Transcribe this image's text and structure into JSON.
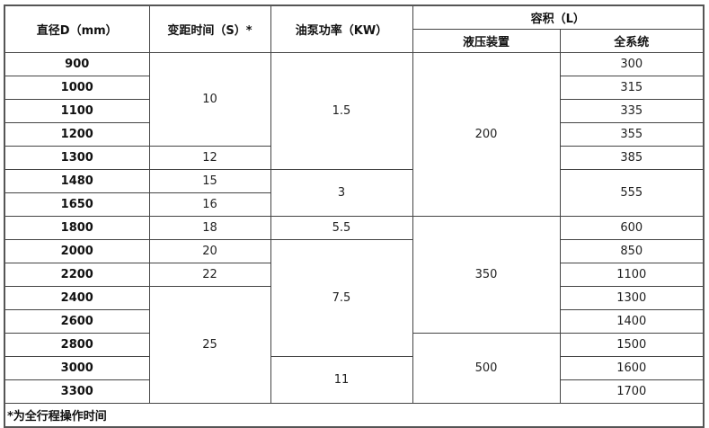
{
  "headers": {
    "diameter": "直径D（mm）",
    "pitch_time": "变距时间（S）*",
    "pump_power": "油泵功率（KW）",
    "volume": "容积（L）",
    "hydraulic": "液压装置",
    "system": "全系统"
  },
  "diameters": [
    "900",
    "1000",
    "1100",
    "1200",
    "1300",
    "1480",
    "1650",
    "1800",
    "2000",
    "2200",
    "2400",
    "2600",
    "2800",
    "3000",
    "3300"
  ],
  "pitch_time": [
    {
      "value": "10",
      "rows": 4
    },
    {
      "value": "12",
      "rows": 1
    },
    {
      "value": "15",
      "rows": 1
    },
    {
      "value": "16",
      "rows": 1
    },
    {
      "value": "18",
      "rows": 1
    },
    {
      "value": "20",
      "rows": 1
    },
    {
      "value": "22",
      "rows": 1
    },
    {
      "value": "25",
      "rows": 5
    }
  ],
  "pump_power": [
    {
      "value": "1.5",
      "rows": 5
    },
    {
      "value": "3",
      "rows": 2
    },
    {
      "value": "5.5",
      "rows": 1
    },
    {
      "value": "7.5",
      "rows": 5
    },
    {
      "value": "11",
      "rows": 2
    }
  ],
  "hydraulic": [
    {
      "value": "200",
      "rows": 7
    },
    {
      "value": "350",
      "rows": 5
    },
    {
      "value": "500",
      "rows": 3
    }
  ],
  "system": [
    {
      "value": "300",
      "rows": 1
    },
    {
      "value": "315",
      "rows": 1
    },
    {
      "value": "335",
      "rows": 1
    },
    {
      "value": "355",
      "rows": 1
    },
    {
      "value": "385",
      "rows": 1
    },
    {
      "value": "555",
      "rows": 2
    },
    {
      "value": "600",
      "rows": 1
    },
    {
      "value": "850",
      "rows": 1
    },
    {
      "value": "1100",
      "rows": 1
    },
    {
      "value": "1300",
      "rows": 1
    },
    {
      "value": "1400",
      "rows": 1
    },
    {
      "value": "1500",
      "rows": 1
    },
    {
      "value": "1600",
      "rows": 1
    },
    {
      "value": "1700",
      "rows": 1
    }
  ],
  "footnote": "*为全行程操作时间"
}
